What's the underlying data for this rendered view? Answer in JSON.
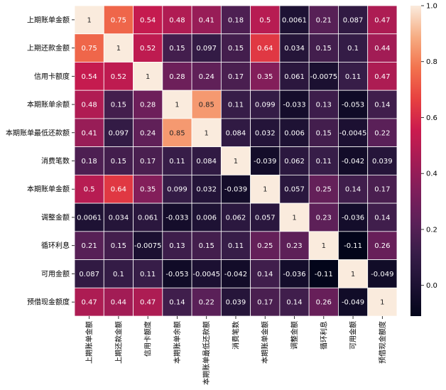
{
  "chart_data": {
    "type": "heatmap",
    "title": "",
    "xlabel": "",
    "ylabel": "",
    "labels": [
      "上期账单金额",
      "上期还款金额",
      "信用卡额度",
      "本期账单余额",
      "本期账单最低还款额",
      "消费笔数",
      "本期账单金额",
      "调整金额",
      "循环利息",
      "可用金额",
      "预借现金额度"
    ],
    "values": [
      [
        1,
        0.75,
        0.54,
        0.48,
        0.41,
        0.18,
        0.5,
        0.0061,
        0.21,
        0.087,
        0.47
      ],
      [
        0.75,
        1,
        0.52,
        0.15,
        0.097,
        0.15,
        0.64,
        0.034,
        0.15,
        0.1,
        0.44
      ],
      [
        0.54,
        0.52,
        1,
        0.28,
        0.24,
        0.17,
        0.35,
        0.061,
        -0.0075,
        0.11,
        0.47
      ],
      [
        0.48,
        0.15,
        0.28,
        1,
        0.85,
        0.11,
        0.099,
        -0.033,
        0.13,
        -0.053,
        0.14
      ],
      [
        0.41,
        0.097,
        0.24,
        0.85,
        1,
        0.084,
        0.032,
        0.006,
        0.15,
        -0.0045,
        0.22
      ],
      [
        0.18,
        0.15,
        0.17,
        0.11,
        0.084,
        1,
        -0.039,
        0.062,
        0.11,
        -0.042,
        0.039
      ],
      [
        0.5,
        0.64,
        0.35,
        0.099,
        0.032,
        -0.039,
        1,
        0.057,
        0.25,
        0.14,
        0.17
      ],
      [
        0.0061,
        0.034,
        0.061,
        -0.033,
        0.006,
        0.062,
        0.057,
        1,
        0.23,
        -0.036,
        0.14
      ],
      [
        0.21,
        0.15,
        -0.0075,
        0.13,
        0.15,
        0.11,
        0.25,
        0.23,
        1,
        -0.11,
        0.26
      ],
      [
        0.087,
        0.1,
        0.11,
        -0.053,
        -0.0045,
        -0.042,
        0.14,
        -0.036,
        -0.11,
        1,
        -0.049
      ],
      [
        0.47,
        0.44,
        0.47,
        0.14,
        0.22,
        0.039,
        0.17,
        0.14,
        0.26,
        -0.049,
        1
      ]
    ],
    "value_labels": [
      [
        "1",
        "0.75",
        "0.54",
        "0.48",
        "0.41",
        "0.18",
        "0.5",
        "0.0061",
        "0.21",
        "0.087",
        "0.47"
      ],
      [
        "0.75",
        "1",
        "0.52",
        "0.15",
        "0.097",
        "0.15",
        "0.64",
        "0.034",
        "0.15",
        "0.1",
        "0.44"
      ],
      [
        "0.54",
        "0.52",
        "1",
        "0.28",
        "0.24",
        "0.17",
        "0.35",
        "0.061",
        "-0.0075",
        "0.11",
        "0.47"
      ],
      [
        "0.48",
        "0.15",
        "0.28",
        "1",
        "0.85",
        "0.11",
        "0.099",
        "-0.033",
        "0.13",
        "-0.053",
        "0.14"
      ],
      [
        "0.41",
        "0.097",
        "0.24",
        "0.85",
        "1",
        "0.084",
        "0.032",
        "0.006",
        "0.15",
        "-0.0045",
        "0.22"
      ],
      [
        "0.18",
        "0.15",
        "0.17",
        "0.11",
        "0.084",
        "1",
        "-0.039",
        "0.062",
        "0.11",
        "-0.042",
        "0.039"
      ],
      [
        "0.5",
        "0.64",
        "0.35",
        "0.099",
        "0.032",
        "-0.039",
        "1",
        "0.057",
        "0.25",
        "0.14",
        "0.17"
      ],
      [
        "0.0061",
        "0.034",
        "0.061",
        "-0.033",
        "0.006",
        "0.062",
        "0.057",
        "1",
        "0.23",
        "-0.036",
        "0.14"
      ],
      [
        "0.21",
        "0.15",
        "-0.0075",
        "0.13",
        "0.15",
        "0.11",
        "0.25",
        "0.23",
        "1",
        "-0.11",
        "0.26"
      ],
      [
        "0.087",
        "0.1",
        "0.11",
        "-0.053",
        "-0.0045",
        "-0.042",
        "0.14",
        "-0.036",
        "-0.11",
        "1",
        "-0.049"
      ],
      [
        "0.47",
        "0.44",
        "0.47",
        "0.14",
        "0.22",
        "0.039",
        "0.17",
        "0.14",
        "0.26",
        "-0.049",
        "1"
      ]
    ],
    "colorbar": {
      "colormap": "rocket",
      "vmin": -0.11,
      "vmax": 1,
      "ticks": [
        0.0,
        0.2,
        0.4,
        0.6,
        0.8,
        1.0
      ],
      "tick_labels": [
        "0.0",
        "0.2",
        "0.4",
        "0.6",
        "0.8",
        "1.0"
      ]
    },
    "grid": true,
    "cell_border_color": "#ffffff",
    "text_color_dark_bg": "#ffffff",
    "text_color_light_bg": "#262626"
  }
}
